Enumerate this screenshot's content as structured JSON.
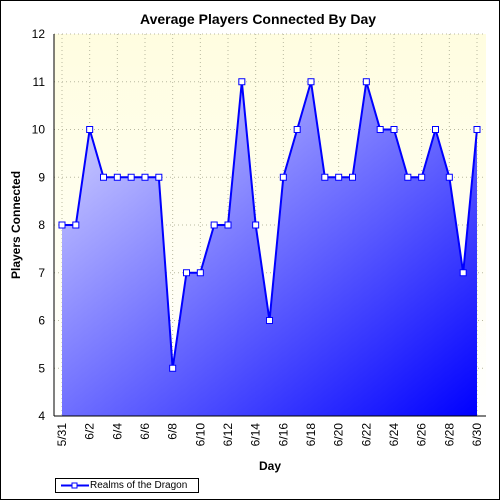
{
  "colors": {
    "background": "#ffffff",
    "plot_bg_top": "#fffde0",
    "plot_bg_bottom": "#ffffff",
    "grid": "#b9b9a0",
    "line": "#0000ff",
    "area_light": "#ddddff",
    "area_dark": "#0000ff",
    "marker_fill": "#ffffff"
  },
  "chart_data": {
    "type": "area",
    "title": "Average Players Connected By Day",
    "xlabel": "Day",
    "ylabel": "Players Connected",
    "ylim": [
      4,
      12
    ],
    "yticks": [
      4,
      5,
      6,
      7,
      8,
      9,
      10,
      11,
      12
    ],
    "grid": true,
    "legend_placement": "bottom-left",
    "categories": [
      "5/31",
      "6/1",
      "6/2",
      "6/3",
      "6/4",
      "6/5",
      "6/6",
      "6/7",
      "6/8",
      "6/9",
      "6/10",
      "6/11",
      "6/12",
      "6/13",
      "6/14",
      "6/15",
      "6/16",
      "6/17",
      "6/18",
      "6/19",
      "6/20",
      "6/21",
      "6/22",
      "6/23",
      "6/24",
      "6/25",
      "6/26",
      "6/27",
      "6/28",
      "6/29",
      "6/30"
    ],
    "tick_labels": [
      "5/31",
      "6/2",
      "6/4",
      "6/6",
      "6/8",
      "6/10",
      "6/12",
      "6/14",
      "6/16",
      "6/18",
      "6/20",
      "6/22",
      "6/24",
      "6/26",
      "6/28",
      "6/30"
    ],
    "series": [
      {
        "name": "Realms of the Dragon",
        "values": [
          8,
          8,
          10,
          9,
          9,
          9,
          9,
          9,
          5,
          7,
          7,
          8,
          8,
          11,
          8,
          6,
          9,
          10,
          11,
          9,
          9,
          9,
          11,
          10,
          10,
          9,
          9,
          10,
          9,
          7,
          10
        ]
      }
    ]
  }
}
